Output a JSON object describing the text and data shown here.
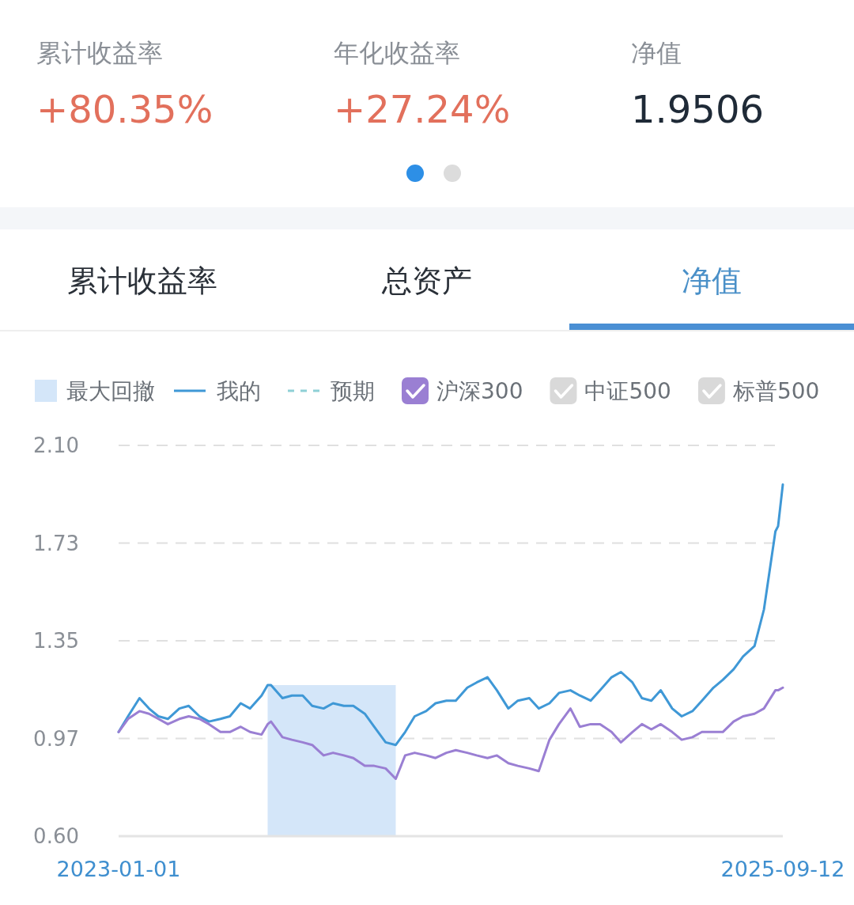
{
  "chart_data": [
    {
      "type": "other",
      "annotations": [
        "累计收益率",
        "+80.35%",
        "年化收益率",
        "+27.24%",
        "净值",
        "1.9506"
      ]
    },
    {
      "type": "other",
      "annotations": [
        "累计收益率",
        "总资产",
        "净值"
      ]
    },
    {
      "type": "line",
      "legend": "top",
      "grid": "y",
      "marker": "none",
      "xlim": [
        "2023-01-01",
        "2025-09-12"
      ],
      "xticks": [
        "2023-01-01",
        "2025-09-12"
      ],
      "ylim": [
        0.6,
        2.1
      ],
      "yticks": [
        {
          "value": 0.6,
          "label": "0.60"
        },
        {
          "value": 0.975,
          "label": "0.97"
        },
        {
          "value": 1.35,
          "label": "1.35"
        },
        {
          "value": 1.725,
          "label": "1.73"
        },
        {
          "value": 2.1,
          "label": "2.10"
        }
      ],
      "bands": [
        {
          "axis": "x",
          "from": "2023-08-10",
          "to": "2024-02-16",
          "label": "最大回撤",
          "color": "#d4e6f9"
        }
      ],
      "x": [
        "2023-01-01",
        "2023-01-15",
        "2023-02-01",
        "2023-02-15",
        "2023-03-01",
        "2023-03-15",
        "2023-04-01",
        "2023-04-15",
        "2023-05-01",
        "2023-05-15",
        "2023-06-01",
        "2023-06-15",
        "2023-07-01",
        "2023-07-15",
        "2023-08-01",
        "2023-08-10",
        "2023-08-15",
        "2023-09-01",
        "2023-09-15",
        "2023-10-01",
        "2023-10-15",
        "2023-11-01",
        "2023-11-15",
        "2023-12-01",
        "2023-12-15",
        "2024-01-01",
        "2024-01-15",
        "2024-02-01",
        "2024-02-16",
        "2024-03-01",
        "2024-03-15",
        "2024-04-01",
        "2024-04-15",
        "2024-05-01",
        "2024-05-15",
        "2024-06-01",
        "2024-06-15",
        "2024-07-01",
        "2024-07-15",
        "2024-08-01",
        "2024-08-15",
        "2024-09-01",
        "2024-09-15",
        "2024-10-01",
        "2024-10-15",
        "2024-11-01",
        "2024-11-15",
        "2024-12-01",
        "2024-12-15",
        "2025-01-01",
        "2025-01-15",
        "2025-02-01",
        "2025-02-15",
        "2025-03-01",
        "2025-03-15",
        "2025-04-01",
        "2025-04-15",
        "2025-05-01",
        "2025-05-15",
        "2025-06-01",
        "2025-06-15",
        "2025-07-01",
        "2025-07-15",
        "2025-08-01",
        "2025-08-15",
        "2025-09-01",
        "2025-09-05",
        "2025-09-12"
      ],
      "series": [
        {
          "name": "我的",
          "color": "#3f98d6",
          "line_style": "solid",
          "values": [
            1.0,
            1.06,
            1.13,
            1.09,
            1.06,
            1.05,
            1.09,
            1.1,
            1.06,
            1.04,
            1.05,
            1.06,
            1.11,
            1.09,
            1.14,
            1.18,
            1.18,
            1.13,
            1.14,
            1.14,
            1.1,
            1.09,
            1.11,
            1.1,
            1.1,
            1.07,
            1.02,
            0.96,
            0.95,
            1.0,
            1.06,
            1.08,
            1.11,
            1.12,
            1.12,
            1.17,
            1.19,
            1.21,
            1.16,
            1.09,
            1.12,
            1.13,
            1.09,
            1.11,
            1.15,
            1.16,
            1.14,
            1.12,
            1.16,
            1.21,
            1.23,
            1.19,
            1.13,
            1.12,
            1.16,
            1.09,
            1.06,
            1.08,
            1.12,
            1.17,
            1.2,
            1.24,
            1.29,
            1.33,
            1.47,
            1.77,
            1.79,
            1.95
          ]
        },
        {
          "name": "预期",
          "color": "#8fd0d6",
          "line_style": "dashed",
          "values": [
            null,
            null,
            null,
            null,
            null,
            null,
            null,
            null,
            null,
            null,
            null,
            null,
            null,
            null,
            null,
            null,
            null,
            null,
            null,
            null,
            null,
            null,
            null,
            null,
            null,
            null,
            null,
            null,
            null,
            null,
            null,
            null,
            null,
            null,
            null,
            null,
            null,
            null,
            null,
            null,
            null,
            null,
            null,
            null,
            null,
            null,
            null,
            null,
            null,
            null,
            null,
            null,
            null,
            null,
            null,
            null,
            null,
            null,
            null,
            null,
            null,
            null,
            null,
            null,
            null,
            null,
            null,
            null
          ]
        },
        {
          "name": "沪深300",
          "color": "#9a7fd3",
          "values": [
            1.0,
            1.05,
            1.08,
            1.07,
            1.05,
            1.03,
            1.05,
            1.06,
            1.05,
            1.03,
            1.0,
            1.0,
            1.02,
            1.0,
            0.99,
            1.03,
            1.04,
            0.98,
            0.97,
            0.96,
            0.95,
            0.91,
            0.92,
            0.91,
            0.9,
            0.87,
            0.87,
            0.86,
            0.82,
            0.91,
            0.92,
            0.91,
            0.9,
            0.92,
            0.93,
            0.92,
            0.91,
            0.9,
            0.91,
            0.88,
            0.87,
            0.86,
            0.85,
            0.97,
            1.03,
            1.09,
            1.02,
            1.03,
            1.03,
            1.0,
            0.96,
            1.0,
            1.03,
            1.01,
            1.03,
            1.0,
            0.97,
            0.98,
            1.0,
            1.0,
            1.0,
            1.04,
            1.06,
            1.07,
            1.09,
            1.16,
            1.16,
            1.17
          ]
        },
        {
          "name": "中证500",
          "color": "#d9d9d9",
          "values": [
            null,
            null,
            null,
            null,
            null,
            null,
            null,
            null,
            null,
            null,
            null,
            null,
            null,
            null,
            null,
            null,
            null,
            null,
            null,
            null,
            null,
            null,
            null,
            null,
            null,
            null,
            null,
            null,
            null,
            null,
            null,
            null,
            null,
            null,
            null,
            null,
            null,
            null,
            null,
            null,
            null,
            null,
            null,
            null,
            null,
            null,
            null,
            null,
            null,
            null,
            null,
            null,
            null,
            null,
            null,
            null,
            null,
            null,
            null,
            null,
            null,
            null,
            null,
            null,
            null,
            null,
            null,
            null
          ]
        },
        {
          "name": "标普500",
          "color": "#d9d9d9",
          "values": [
            null,
            null,
            null,
            null,
            null,
            null,
            null,
            null,
            null,
            null,
            null,
            null,
            null,
            null,
            null,
            null,
            null,
            null,
            null,
            null,
            null,
            null,
            null,
            null,
            null,
            null,
            null,
            null,
            null,
            null,
            null,
            null,
            null,
            null,
            null,
            null,
            null,
            null,
            null,
            null,
            null,
            null,
            null,
            null,
            null,
            null,
            null,
            null,
            null,
            null,
            null,
            null,
            null,
            null,
            null,
            null,
            null,
            null,
            null,
            null,
            null,
            null,
            null,
            null,
            null,
            null,
            null,
            null
          ]
        }
      ]
    }
  ]
}
